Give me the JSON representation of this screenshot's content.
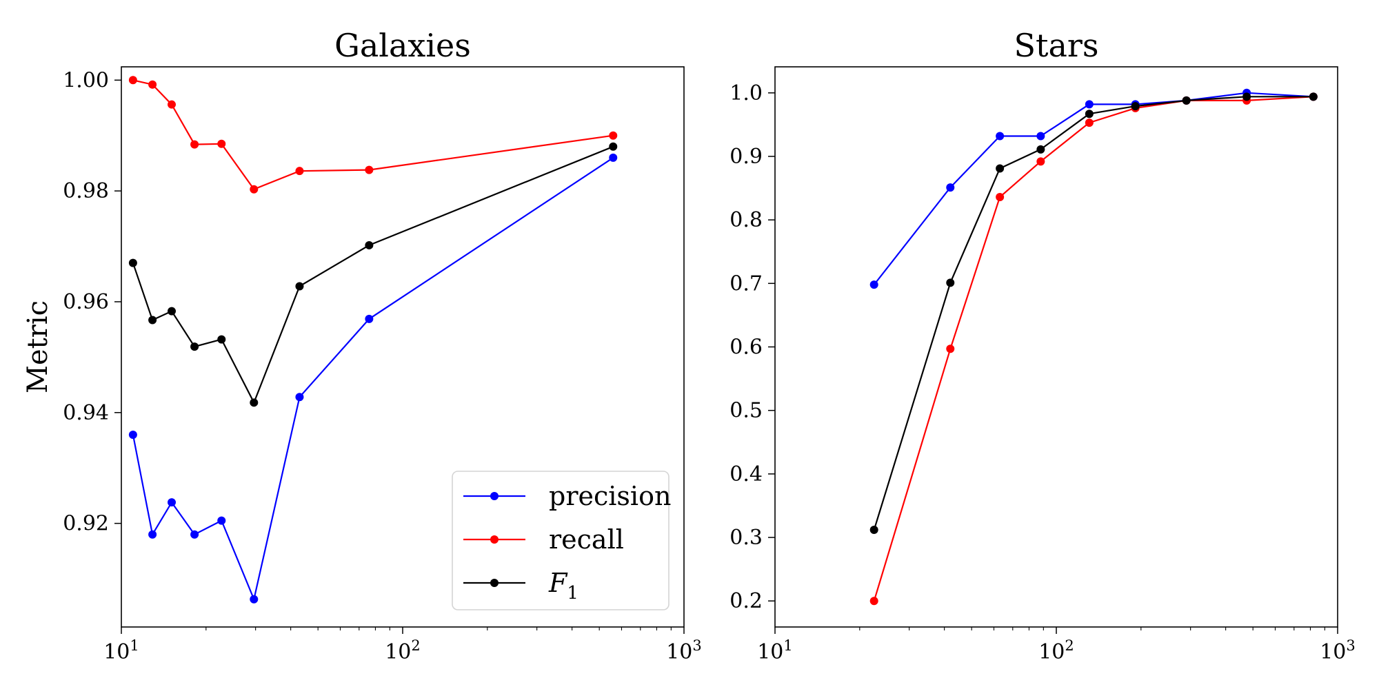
{
  "chart_data": [
    {
      "type": "line",
      "title": "Galaxies",
      "xlabel": "",
      "ylabel": "Metric",
      "xscale": "log",
      "xlim": [
        10,
        1000
      ],
      "ylim": [
        0.9013,
        1.0024
      ],
      "x_ticks": [
        10,
        100,
        1000
      ],
      "x_tick_labels": [
        "10^1",
        "10^2",
        "10^3"
      ],
      "y_ticks": [
        0.92,
        0.94,
        0.96,
        0.98,
        1.0
      ],
      "y_tick_labels": [
        "0.92",
        "0.94",
        "0.96",
        "0.98",
        "1.00"
      ],
      "grid": false,
      "legend": "lower-right",
      "series": [
        {
          "name": "precision",
          "color": "#0000ff",
          "x": [
            11,
            12.9,
            15.1,
            18.2,
            22.7,
            29.6,
            43,
            76,
            560
          ],
          "y": [
            0.936,
            0.918,
            0.9238,
            0.918,
            0.9205,
            0.9063,
            0.9428,
            0.9569,
            0.986
          ]
        },
        {
          "name": "recall",
          "color": "#ff0000",
          "x": [
            11,
            12.9,
            15.1,
            18.2,
            22.7,
            29.6,
            43,
            76,
            560
          ],
          "y": [
            1.0,
            0.9992,
            0.9956,
            0.9884,
            0.9885,
            0.9803,
            0.9836,
            0.9838,
            0.99
          ]
        },
        {
          "name": "F_1",
          "color": "#000000",
          "x": [
            11,
            12.9,
            15.1,
            18.2,
            22.7,
            29.6,
            43,
            76,
            560
          ],
          "y": [
            0.967,
            0.9567,
            0.9583,
            0.9519,
            0.9532,
            0.9418,
            0.9628,
            0.9702,
            0.988
          ]
        }
      ]
    },
    {
      "type": "line",
      "title": "Stars",
      "xlabel": "",
      "ylabel": "",
      "xscale": "log",
      "xlim": [
        10,
        1000
      ],
      "ylim": [
        0.159,
        1.041
      ],
      "x_ticks": [
        10,
        100,
        1000
      ],
      "x_tick_labels": [
        "10^1",
        "10^2",
        "10^3"
      ],
      "y_ticks": [
        0.2,
        0.3,
        0.4,
        0.5,
        0.6,
        0.7,
        0.8,
        0.9,
        1.0
      ],
      "y_tick_labels": [
        "0.2",
        "0.3",
        "0.4",
        "0.5",
        "0.6",
        "0.7",
        "0.8",
        "0.9",
        "1.0"
      ],
      "grid": false,
      "legend": "none",
      "series": [
        {
          "name": "precision",
          "color": "#0000ff",
          "x": [
            22.5,
            42,
            63,
            88,
            131,
            191,
            290,
            475,
            820
          ],
          "y": [
            0.698,
            0.851,
            0.932,
            0.932,
            0.982,
            0.982,
            0.988,
            1.0,
            0.994
          ]
        },
        {
          "name": "recall",
          "color": "#ff0000",
          "x": [
            22.5,
            42,
            63,
            88,
            131,
            191,
            290,
            475,
            820
          ],
          "y": [
            0.2,
            0.597,
            0.836,
            0.892,
            0.953,
            0.976,
            0.988,
            0.988,
            0.994
          ]
        },
        {
          "name": "F_1",
          "color": "#000000",
          "x": [
            22.5,
            42,
            63,
            88,
            131,
            191,
            290,
            475,
            820
          ],
          "y": [
            0.312,
            0.701,
            0.881,
            0.911,
            0.967,
            0.979,
            0.988,
            0.994,
            0.994
          ]
        }
      ]
    }
  ]
}
